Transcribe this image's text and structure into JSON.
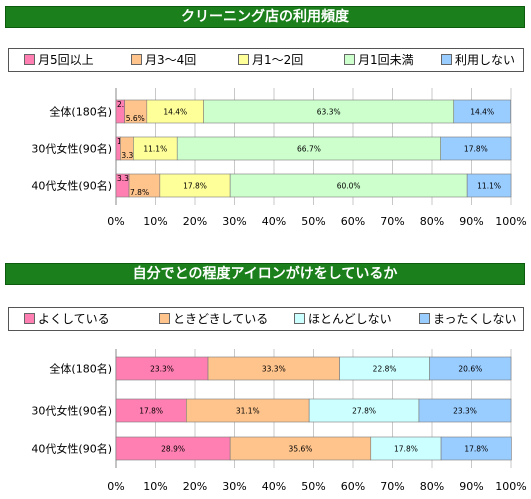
{
  "chart_data": [
    {
      "type": "bar",
      "orientation": "horizontal",
      "stacked": true,
      "title": "クリーニング店の利用頻度",
      "categories": [
        "全体(180名)",
        "30代女性(90名)",
        "40代女性(90名)"
      ],
      "series": [
        {
          "name": "月5回以上",
          "color": "#ff7fb2",
          "values": [
            2.2,
            1.1,
            3.3
          ]
        },
        {
          "name": "月3～4回",
          "color": "#ffc48c",
          "values": [
            5.6,
            3.3,
            7.8
          ]
        },
        {
          "name": "月1～2回",
          "color": "#ffff99",
          "values": [
            14.4,
            11.1,
            17.8
          ]
        },
        {
          "name": "月1回未満",
          "color": "#ccffcc",
          "values": [
            63.3,
            66.7,
            60.0
          ]
        },
        {
          "name": "利用しない",
          "color": "#99ccff",
          "values": [
            14.4,
            17.8,
            11.1
          ]
        }
      ],
      "data_labels": [
        [
          "2.2%",
          "5.6%",
          "14.4%",
          "63.3%",
          "14.4%"
        ],
        [
          "1.1%",
          "3.3%",
          "11.1%",
          "66.7%",
          "17.8%"
        ],
        [
          "3.3%",
          "7.8%",
          "17.8%",
          "60.0%",
          "11.1%"
        ]
      ],
      "xlim": [
        0,
        100
      ],
      "xticks": [
        "0%",
        "10%",
        "20%",
        "30%",
        "40%",
        "50%",
        "60%",
        "70%",
        "80%",
        "90%",
        "100%"
      ],
      "legend": "top"
    },
    {
      "type": "bar",
      "orientation": "horizontal",
      "stacked": true,
      "title": "自分でとの程度アイロンがけをしているか",
      "categories": [
        "全体(180名)",
        "30代女性(90名)",
        "40代女性(90名)"
      ],
      "series": [
        {
          "name": "よくしている",
          "color": "#ff7fb2",
          "values": [
            23.3,
            17.8,
            28.9
          ]
        },
        {
          "name": "ときどきしている",
          "color": "#ffc48c",
          "values": [
            33.3,
            31.1,
            35.6
          ]
        },
        {
          "name": "ほとんどしない",
          "color": "#ccffff",
          "values": [
            22.8,
            27.8,
            17.8
          ]
        },
        {
          "name": "まったくしない",
          "color": "#99ccff",
          "values": [
            20.6,
            23.3,
            17.8
          ]
        }
      ],
      "data_labels": [
        [
          "23.3%",
          "33.3%",
          "22.8%",
          "20.6%"
        ],
        [
          "17.8%",
          "31.1%",
          "27.8%",
          "23.3%"
        ],
        [
          "28.9%",
          "35.6%",
          "17.8%",
          "17.8%"
        ]
      ],
      "xlim": [
        0,
        100
      ],
      "xticks": [
        "0%",
        "10%",
        "20%",
        "30%",
        "40%",
        "50%",
        "60%",
        "70%",
        "80%",
        "90%",
        "100%"
      ],
      "legend": "top"
    }
  ]
}
